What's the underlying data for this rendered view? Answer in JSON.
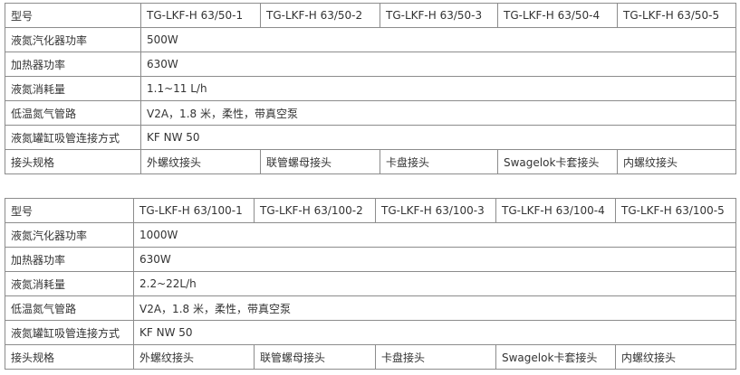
{
  "tables": [
    {
      "rows": [
        {
          "label": "型号",
          "cells": [
            "TG-LKF-H 63/50-1",
            "TG-LKF-H 63/50-2",
            "TG-LKF-H 63/50-3",
            "TG-LKF-H 63/50-4",
            "TG-LKF-H 63/50-5"
          ]
        },
        {
          "label": "液氮汽化器功率",
          "cells": [
            "500W"
          ]
        },
        {
          "label": "加热器功率",
          "cells": [
            "630W"
          ]
        },
        {
          "label": "液氮消耗量",
          "cells": [
            "1.1~11 L/h"
          ]
        },
        {
          "label": "低温氮气管路",
          "cells": [
            "V2A，1.8 米，柔性，带真空泵"
          ]
        },
        {
          "label": "液氮罐缸吸管连接方式",
          "cells": [
            "KF NW 50"
          ]
        },
        {
          "label": "接头规格",
          "cells": [
            "外螺纹接头",
            "联管螺母接头",
            "卡盘接头",
            "Swagelok卡套接头",
            "内螺纹接头"
          ]
        }
      ]
    },
    {
      "rows": [
        {
          "label": "型号",
          "cells": [
            "TG-LKF-H 63/100-1",
            "TG-LKF-H 63/100-2",
            "TG-LKF-H 63/100-3",
            "TG-LKF-H 63/100-4",
            "TG-LKF-H 63/100-5"
          ]
        },
        {
          "label": "液氮汽化器功率",
          "cells": [
            "1000W"
          ]
        },
        {
          "label": "加热器功率",
          "cells": [
            "630W"
          ]
        },
        {
          "label": "液氮消耗量",
          "cells": [
            "2.2~22L/h"
          ]
        },
        {
          "label": "低温氮气管路",
          "cells": [
            "V2A，1.8 米，柔性，带真空泵"
          ]
        },
        {
          "label": "液氮罐缸吸管连接方式",
          "cells": [
            "KF NW 50"
          ]
        },
        {
          "label": "接头规格",
          "cells": [
            "外螺纹接头",
            "联管螺母接头",
            "卡盘接头",
            "Swagelok卡套接头",
            "内螺纹接头"
          ]
        }
      ]
    }
  ]
}
